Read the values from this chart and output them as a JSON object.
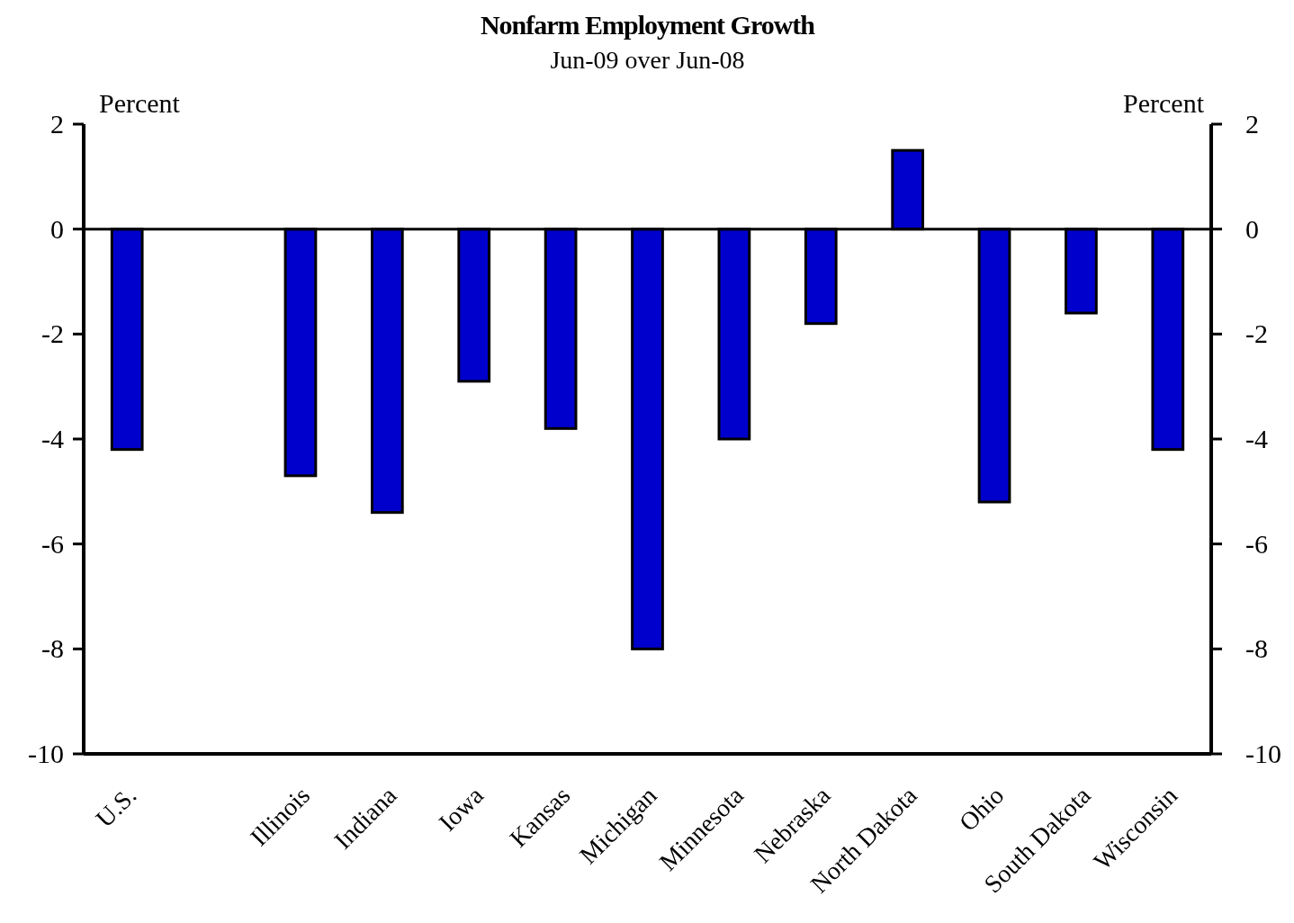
{
  "chart_data": {
    "type": "bar",
    "title": "Nonfarm Employment Growth",
    "subtitle": "Jun-09 over Jun-08",
    "ylabel": "Percent",
    "y2label": "Percent",
    "categories": [
      "U.S.",
      null,
      "Illinois",
      "Indiana",
      "Iowa",
      "Kansas",
      "Michigan",
      "Minnesota",
      "Nebraska",
      "North Dakota",
      "Ohio",
      "South Dakota",
      "Wisconsin"
    ],
    "values": [
      -4.2,
      null,
      -4.7,
      -5.4,
      -2.9,
      -3.8,
      -8.0,
      -4.0,
      -1.8,
      1.5,
      -5.2,
      -1.6,
      -4.2
    ],
    "color": "#0000cc",
    "ylim": [
      -10,
      2
    ],
    "yticks": [
      -10,
      -8,
      -6,
      -4,
      -2,
      0,
      2
    ],
    "y2lim": [
      -10,
      2
    ],
    "y2ticks": [
      -10,
      -8,
      -6,
      -4,
      -2,
      0,
      2
    ]
  }
}
